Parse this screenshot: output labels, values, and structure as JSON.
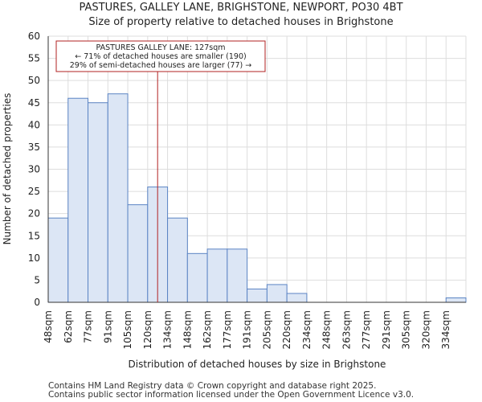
{
  "chart_data": {
    "type": "bar",
    "title": "PASTURES, GALLEY LANE, BRIGHSTONE, NEWPORT, PO30 4BT",
    "subtitle": "Size of property relative to detached houses in Brighstone",
    "xlabel": "Distribution of detached houses by size in Brighstone",
    "ylabel": "Number of detached properties",
    "categories": [
      "48sqm",
      "62sqm",
      "77sqm",
      "91sqm",
      "105sqm",
      "120sqm",
      "134sqm",
      "148sqm",
      "162sqm",
      "177sqm",
      "191sqm",
      "205sqm",
      "220sqm",
      "234sqm",
      "248sqm",
      "263sqm",
      "277sqm",
      "291sqm",
      "305sqm",
      "320sqm",
      "334sqm"
    ],
    "values": [
      19,
      46,
      45,
      47,
      22,
      26,
      19,
      11,
      12,
      12,
      3,
      4,
      2,
      0,
      0,
      0,
      0,
      0,
      0,
      0,
      1
    ],
    "ylim": [
      0,
      60
    ],
    "yticks": [
      0,
      5,
      10,
      15,
      20,
      25,
      30,
      35,
      40,
      45,
      50,
      55,
      60
    ],
    "marker_position": 5.5,
    "annotation": {
      "line1": "PASTURES GALLEY LANE: 127sqm",
      "line2": "← 71% of detached houses are smaller (190)",
      "line3": "29% of semi-detached houses are larger (77) →"
    },
    "colors": {
      "bar_fill": "#dce6f5",
      "bar_stroke": "#5b84c4",
      "marker": "#b22222",
      "grid": "#dddddd"
    }
  },
  "footer": {
    "line1": "Contains HM Land Registry data © Crown copyright and database right 2025.",
    "line2": "Contains public sector information licensed under the Open Government Licence v3.0."
  }
}
